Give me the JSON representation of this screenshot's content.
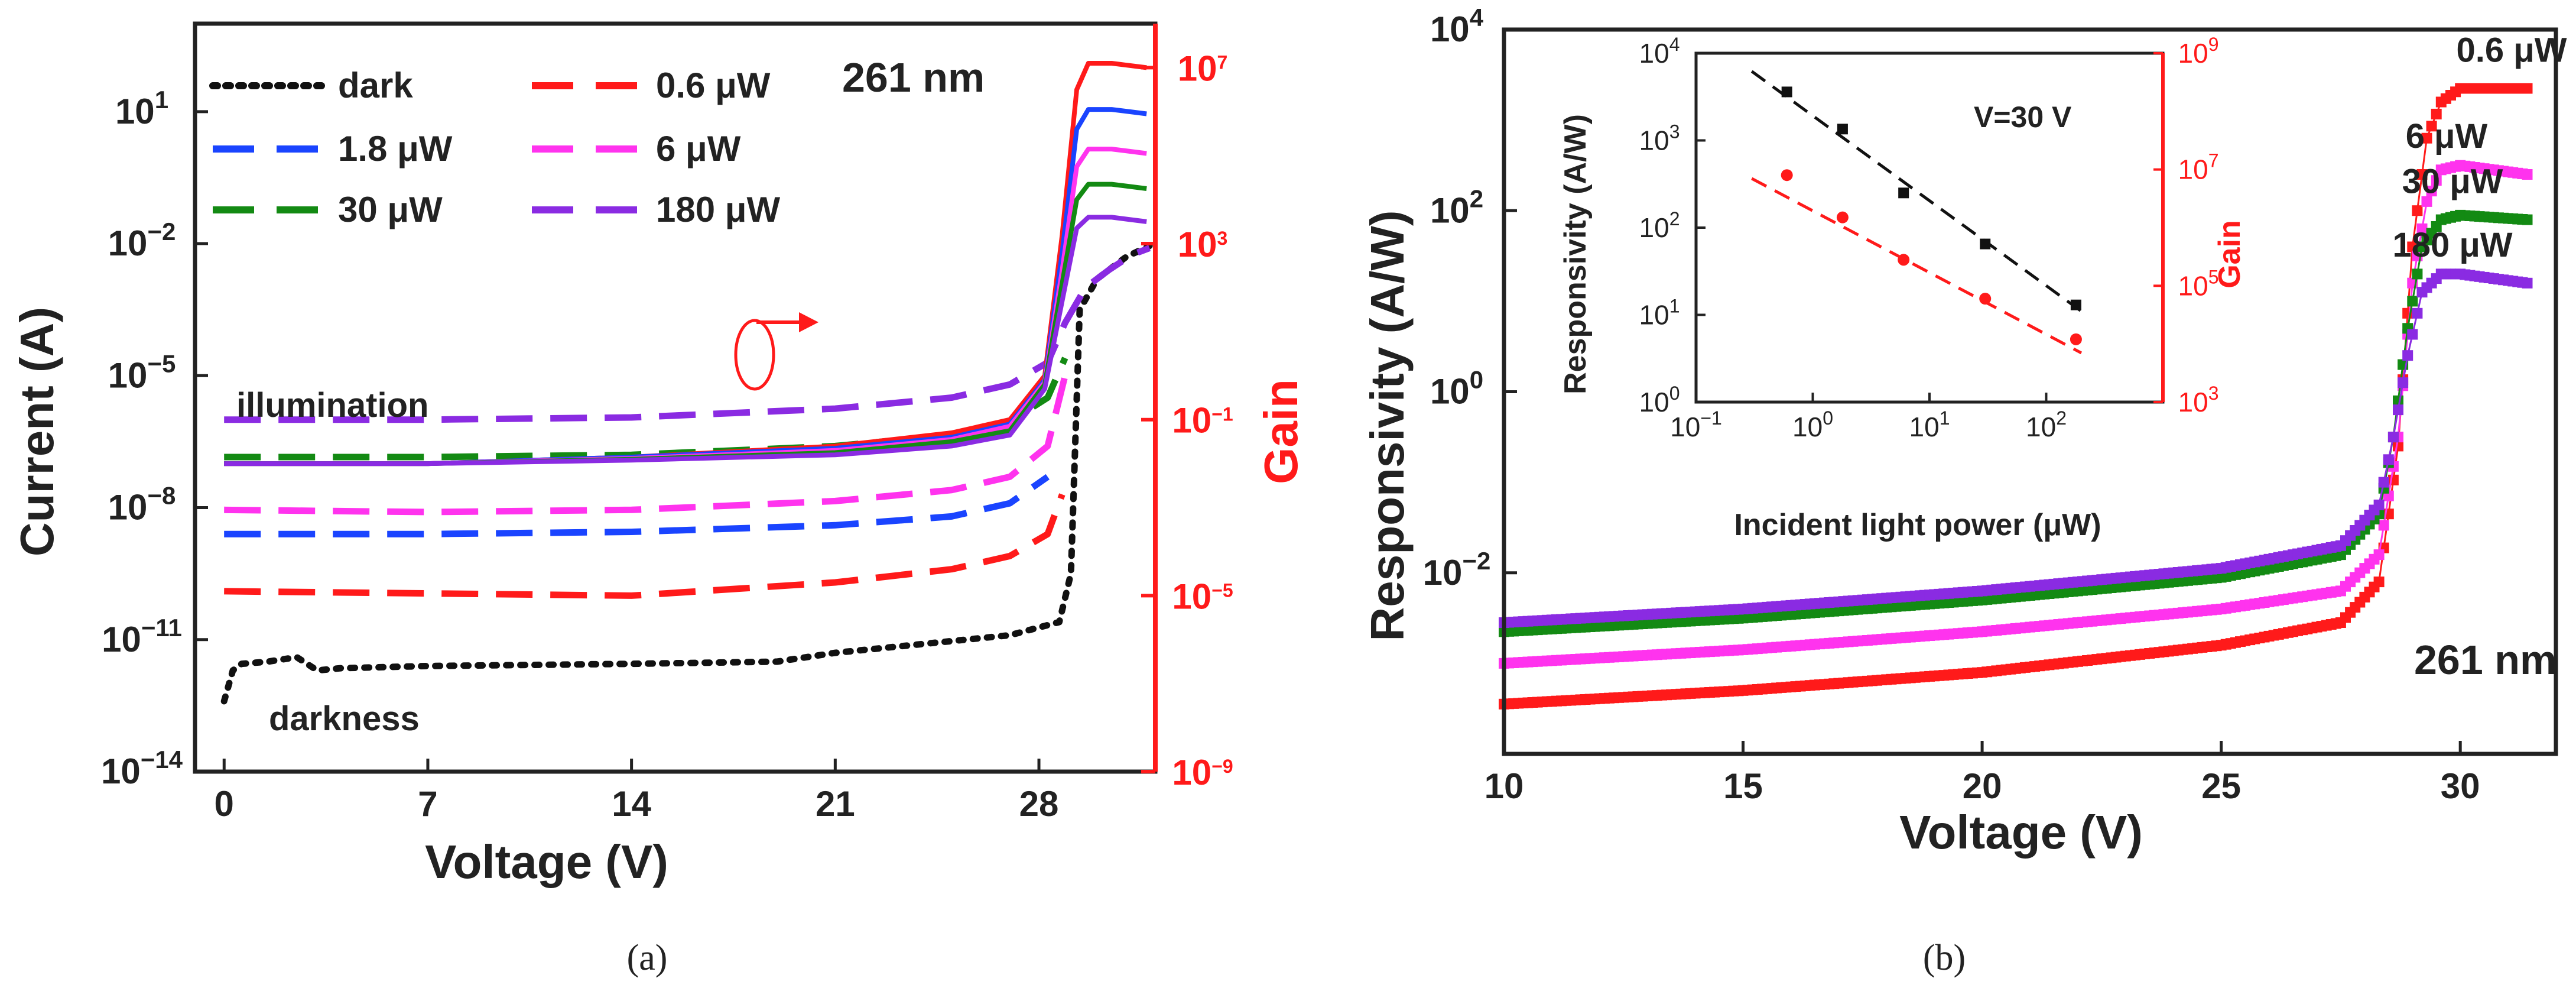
{
  "colors": {
    "dark": "#111111",
    "p0_6": "#ff1a1a",
    "p1_8": "#1a44ff",
    "p6": "#ff33ee",
    "p30": "#138a13",
    "p180": "#8a2be2",
    "gain_axis": "#ff1a1a"
  },
  "captions": {
    "a": "(a)",
    "b": "(b)"
  },
  "chart_data": [
    {
      "id": "a",
      "type": "line",
      "xlabel": "Voltage (V)",
      "ylabel": "Current (A)",
      "y2label": "Gain",
      "yscale": "log",
      "xlim": [
        -1,
        32
      ],
      "ylim_exp": [
        -14,
        3
      ],
      "y2lim_exp": [
        -9,
        8
      ],
      "xticks": [
        0,
        7,
        14,
        21,
        28
      ],
      "xtick_labels": [
        "0",
        "7",
        "14",
        "21",
        "28"
      ],
      "ytick_exps": [
        -14,
        -11,
        -8,
        -5,
        -2,
        1
      ],
      "ytick_labels": [
        "10",
        "10",
        "10",
        "10",
        "10",
        "10"
      ],
      "ytick_sups": [
        "−14",
        "−11",
        "−8",
        "−5",
        "−2",
        "1"
      ],
      "y2tick_exps": [
        -9,
        -5,
        -1,
        3,
        7
      ],
      "y2tick_labels": [
        "10",
        "10",
        "10",
        "10",
        "10"
      ],
      "y2tick_sups": [
        "−9",
        "−5",
        "−1",
        "3",
        "7"
      ],
      "annotations": {
        "wavelength": "261 nm",
        "illumination": "illumination",
        "darkness": "darkness"
      },
      "legend": [
        {
          "label": "dark",
          "key": "dark"
        },
        {
          "label": "0.6 μW",
          "key": "p0_6"
        },
        {
          "label": "1.8 μW",
          "key": "p1_8"
        },
        {
          "label": "6 μW",
          "key": "p6"
        },
        {
          "label": "30 μW",
          "key": "p30"
        },
        {
          "label": "180 μW",
          "key": "p180"
        }
      ],
      "current_series": [
        {
          "name": "dark",
          "key": "dark",
          "axis": "current",
          "dashed": "dot",
          "x": [
            0,
            0.3,
            0.6,
            1.5,
            2.5,
            3.2,
            4,
            7,
            14,
            19,
            21,
            27,
            28.7,
            29.1,
            29.4,
            30,
            31,
            31.8
          ],
          "y_exp": [
            -12.4,
            -11.7,
            -11.55,
            -11.5,
            -11.4,
            -11.7,
            -11.65,
            -11.6,
            -11.55,
            -11.5,
            -11.3,
            -10.9,
            -10.6,
            -9.5,
            -3.5,
            -2.8,
            -2.3,
            -2.05
          ]
        },
        {
          "name": "0.6 μW",
          "key": "p0_6",
          "axis": "current",
          "dashed": "dash",
          "x": [
            0,
            7,
            14,
            21,
            25,
            27,
            28.3,
            28.8
          ],
          "y_exp": [
            -9.9,
            -9.95,
            -10.0,
            -9.7,
            -9.4,
            -9.1,
            -8.6,
            -7.7
          ]
        },
        {
          "name": "1.8 μW",
          "key": "p1_8",
          "axis": "current",
          "dashed": "dash",
          "x": [
            0,
            7,
            14,
            21,
            25,
            27,
            28.3
          ],
          "y_exp": [
            -8.6,
            -8.6,
            -8.55,
            -8.4,
            -8.2,
            -7.9,
            -7.3
          ]
        },
        {
          "name": "6 μW",
          "key": "p6",
          "axis": "current",
          "dashed": "dash",
          "x": [
            0,
            7,
            14,
            21,
            25,
            27,
            28.3,
            28.9
          ],
          "y_exp": [
            -8.05,
            -8.1,
            -8.05,
            -7.85,
            -7.6,
            -7.3,
            -6.6,
            -5.0
          ]
        },
        {
          "name": "30 μW",
          "key": "p30",
          "axis": "current",
          "dashed": "dash",
          "x": [
            0,
            7,
            14,
            21,
            25,
            27,
            28.3,
            28.9
          ],
          "y_exp": [
            -6.85,
            -6.85,
            -6.8,
            -6.6,
            -6.35,
            -6.05,
            -5.5,
            -4.6
          ]
        },
        {
          "name": "180 μW",
          "key": "p180",
          "axis": "current",
          "dashed": "dash",
          "x": [
            0,
            7,
            14,
            21,
            25,
            27,
            28.3,
            28.9,
            29.6,
            30.4,
            31.2,
            31.8
          ],
          "y_exp": [
            -6.0,
            -6.0,
            -5.95,
            -5.75,
            -5.5,
            -5.2,
            -4.7,
            -3.8,
            -3.0,
            -2.6,
            -2.25,
            -2.1
          ]
        }
      ],
      "gain_series": [
        {
          "name": "0.6 μW",
          "key": "p0_6",
          "x": [
            0,
            7,
            14,
            21,
            25,
            27,
            28.2,
            28.8,
            29.3,
            29.7,
            30.5,
            31.7
          ],
          "y_exp": [
            -2.0,
            -2.0,
            -1.85,
            -1.6,
            -1.3,
            -1.0,
            0.0,
            3.2,
            6.5,
            7.1,
            7.1,
            7.0
          ]
        },
        {
          "name": "1.8 μW",
          "key": "p1_8",
          "x": [
            0,
            7,
            14,
            21,
            25,
            27,
            28.2,
            28.8,
            29.3,
            29.7,
            30.5,
            31.7
          ],
          "y_exp": [
            -2.0,
            -2.0,
            -1.85,
            -1.65,
            -1.4,
            -1.1,
            -0.1,
            2.8,
            5.6,
            6.05,
            6.05,
            5.95
          ]
        },
        {
          "name": "6 μW",
          "key": "p6",
          "x": [
            0,
            7,
            14,
            21,
            25,
            27,
            28.2,
            28.8,
            29.3,
            29.7,
            30.5,
            31.7
          ],
          "y_exp": [
            -2.0,
            -2.0,
            -1.88,
            -1.7,
            -1.45,
            -1.15,
            -0.15,
            2.4,
            4.75,
            5.15,
            5.15,
            5.05
          ]
        },
        {
          "name": "30 μW",
          "key": "p30",
          "x": [
            0,
            7,
            14,
            21,
            25,
            27,
            28.2,
            28.8,
            29.3,
            29.7,
            30.5,
            31.7
          ],
          "y_exp": [
            -2.0,
            -2.0,
            -1.9,
            -1.75,
            -1.5,
            -1.25,
            -0.2,
            2.1,
            4.0,
            4.35,
            4.35,
            4.25
          ]
        },
        {
          "name": "180 μW",
          "key": "p180",
          "x": [
            0,
            7,
            14,
            21,
            25,
            27,
            28.2,
            28.8,
            29.3,
            29.7,
            30.5,
            31.7
          ],
          "y_exp": [
            -2.0,
            -2.0,
            -1.92,
            -1.8,
            -1.6,
            -1.35,
            -0.3,
            1.7,
            3.35,
            3.6,
            3.6,
            3.5
          ]
        }
      ]
    },
    {
      "id": "b",
      "type": "scatter",
      "xlabel": "Voltage (V)",
      "ylabel": "Responsivity (A/W)",
      "yscale": "log",
      "xlim": [
        10,
        32
      ],
      "ylim_exp": [
        -4,
        4
      ],
      "xticks": [
        10,
        15,
        20,
        25,
        30
      ],
      "xtick_labels": [
        "10",
        "15",
        "20",
        "25",
        "30"
      ],
      "ytick_exps": [
        -2,
        0,
        2,
        4
      ],
      "ytick_labels": [
        "10",
        "10",
        "10",
        "10"
      ],
      "ytick_sups": [
        "−2",
        "0",
        "2",
        "4"
      ],
      "annotations": {
        "wavelength": "261 nm"
      },
      "series": [
        {
          "name": "0.6 μW",
          "key": "p0_6",
          "x": [
            10,
            15,
            20,
            25,
            27.5,
            28.3,
            28.7,
            29.0,
            29.3,
            29.6,
            30,
            31.4
          ],
          "y_exp": [
            -3.45,
            -3.3,
            -3.1,
            -2.8,
            -2.55,
            -2.1,
            -0.6,
            1.6,
            2.8,
            3.2,
            3.35,
            3.35
          ]
        },
        {
          "name": "6 μW",
          "key": "p6",
          "x": [
            10,
            15,
            20,
            25,
            27.5,
            28.3,
            28.7,
            29.0,
            29.3,
            29.6,
            30,
            31.4
          ],
          "y_exp": [
            -3.0,
            -2.85,
            -2.65,
            -2.4,
            -2.2,
            -1.8,
            -0.5,
            1.2,
            2.1,
            2.45,
            2.5,
            2.4
          ]
        },
        {
          "name": "30 μW",
          "key": "p30",
          "x": [
            10,
            15,
            20,
            25,
            27.5,
            28.3,
            28.6,
            28.9,
            29.2,
            29.6,
            30,
            31.4
          ],
          "y_exp": [
            -2.65,
            -2.5,
            -2.3,
            -2.05,
            -1.8,
            -1.35,
            -0.5,
            0.7,
            1.6,
            1.9,
            1.95,
            1.9
          ]
        },
        {
          "name": "180 μW",
          "key": "p180",
          "x": [
            10,
            15,
            20,
            25,
            27.5,
            28.3,
            28.6,
            28.9,
            29.2,
            29.6,
            30,
            31.4
          ],
          "y_exp": [
            -2.55,
            -2.4,
            -2.2,
            -1.95,
            -1.7,
            -1.25,
            -0.5,
            0.4,
            1.1,
            1.3,
            1.3,
            1.2
          ]
        }
      ],
      "series_labels": [
        "0.6 μW",
        "6 μW",
        "30 μW",
        "180 μW"
      ]
    },
    {
      "id": "b-inset",
      "type": "scatter",
      "xlabel": "Incident light power (μW)",
      "ylabel": "Responsivity (A/W)",
      "y2label": "Gain",
      "xscale": "log",
      "yscale": "log",
      "xlim_exp": [
        -1,
        3
      ],
      "ylim_exp": [
        0,
        4
      ],
      "y2lim_exp": [
        3,
        9
      ],
      "xtick_exps": [
        -1,
        0,
        1,
        2
      ],
      "xtick_labels": [
        "10",
        "10",
        "10",
        "10"
      ],
      "xtick_sups": [
        "−1",
        "0",
        "1",
        "2"
      ],
      "ytick_exps": [
        0,
        1,
        2,
        3,
        4
      ],
      "ytick_labels": [
        "10",
        "10",
        "10",
        "10",
        "10"
      ],
      "ytick_sups": [
        "0",
        "1",
        "2",
        "3",
        "4"
      ],
      "y2tick_exps": [
        3,
        5,
        7,
        9
      ],
      "y2tick_labels": [
        "10",
        "10",
        "10",
        "10"
      ],
      "y2tick_sups": [
        "3",
        "5",
        "7",
        "9"
      ],
      "annotation": "V=30 V",
      "responsivity_points": {
        "x": [
          0.6,
          1.8,
          6,
          30,
          180
        ],
        "y": [
          3600,
          1350,
          250,
          65,
          13
        ]
      },
      "gain_points": {
        "x": [
          0.6,
          1.8,
          6,
          30,
          180
        ],
        "y": [
          8000000,
          1500000,
          280000,
          60000,
          12000
        ]
      },
      "fit_responsivity": {
        "x": [
          0.3,
          200
        ],
        "y": [
          6200,
          11
        ]
      },
      "fit_gain": {
        "x": [
          0.3,
          200
        ],
        "y": [
          7000000,
          7000
        ]
      }
    }
  ]
}
